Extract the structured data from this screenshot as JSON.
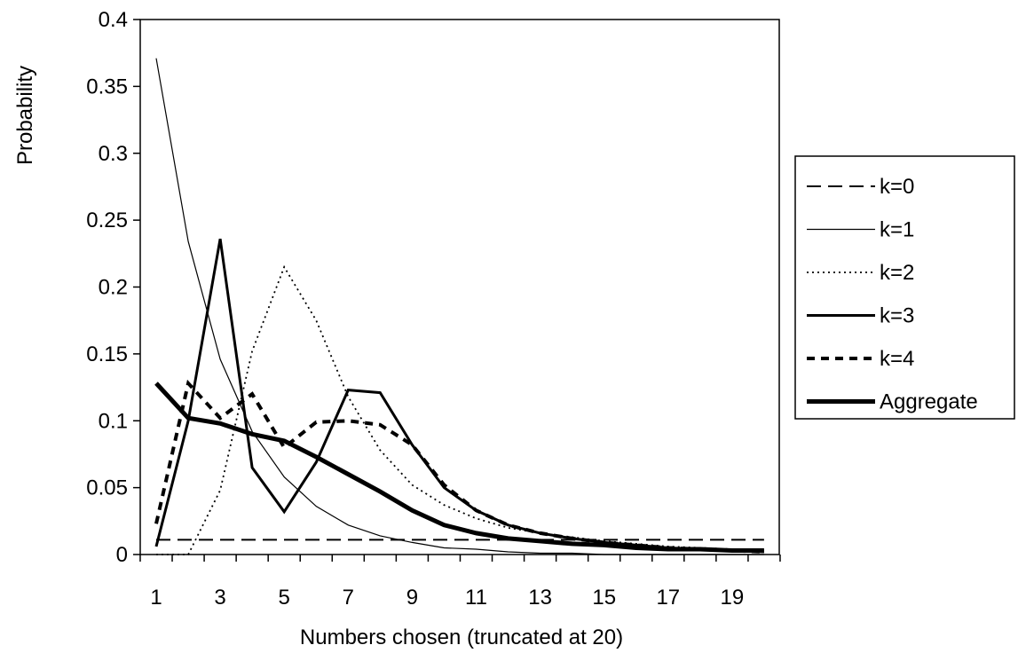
{
  "chart_data": {
    "type": "line",
    "title": "",
    "xlabel": "Numbers chosen (truncated at 20)",
    "ylabel": "Probability",
    "xlim": [
      1,
      20
    ],
    "ylim": [
      0,
      0.4
    ],
    "x_ticks": [
      1,
      3,
      5,
      7,
      9,
      11,
      13,
      15,
      17,
      19
    ],
    "y_ticks": [
      0,
      0.05,
      0.1,
      0.15,
      0.2,
      0.25,
      0.3,
      0.35,
      0.4
    ],
    "y_tick_labels": [
      "0",
      "0.05",
      "0.1",
      "0.15",
      "0.2",
      "0.25",
      "0.3",
      "0.35",
      "0.4"
    ],
    "x": [
      1,
      2,
      3,
      4,
      5,
      6,
      7,
      8,
      9,
      10,
      11,
      12,
      13,
      14,
      15,
      16,
      17,
      18,
      19,
      20
    ],
    "legend_position": "right",
    "grid": false,
    "series": [
      {
        "name": "k=0",
        "style": "dashed",
        "values": [
          0.011,
          0.011,
          0.011,
          0.011,
          0.011,
          0.011,
          0.011,
          0.011,
          0.011,
          0.011,
          0.011,
          0.011,
          0.011,
          0.011,
          0.011,
          0.011,
          0.011,
          0.011,
          0.011,
          0.011
        ]
      },
      {
        "name": "k=1",
        "style": "thin",
        "values": [
          0.371,
          0.234,
          0.146,
          0.092,
          0.058,
          0.036,
          0.022,
          0.014,
          0.009,
          0.005,
          0.004,
          0.002,
          0.001,
          0.001,
          0.0,
          0.0,
          0.0,
          0.0,
          0.0,
          0.0
        ]
      },
      {
        "name": "k=2",
        "style": "dotted",
        "values": [
          0.0,
          0.0,
          0.048,
          0.152,
          0.215,
          0.175,
          0.118,
          0.078,
          0.052,
          0.037,
          0.027,
          0.02,
          0.016,
          0.013,
          0.01,
          0.008,
          0.006,
          0.005,
          0.004,
          0.003
        ]
      },
      {
        "name": "k=3",
        "style": "medium",
        "values": [
          0.006,
          0.1,
          0.236,
          0.065,
          0.032,
          0.069,
          0.123,
          0.121,
          0.082,
          0.05,
          0.033,
          0.022,
          0.016,
          0.012,
          0.009,
          0.007,
          0.005,
          0.004,
          0.003,
          0.002
        ]
      },
      {
        "name": "k=4",
        "style": "bold-dashed",
        "values": [
          0.023,
          0.128,
          0.102,
          0.12,
          0.08,
          0.099,
          0.1,
          0.097,
          0.082,
          0.052,
          0.033,
          0.022,
          0.016,
          0.012,
          0.009,
          0.007,
          0.005,
          0.004,
          0.003,
          0.002
        ]
      },
      {
        "name": "Aggregate",
        "style": "thick",
        "values": [
          0.128,
          0.102,
          0.098,
          0.09,
          0.085,
          0.073,
          0.06,
          0.047,
          0.033,
          0.022,
          0.016,
          0.012,
          0.01,
          0.008,
          0.007,
          0.005,
          0.004,
          0.004,
          0.003,
          0.003
        ]
      }
    ]
  }
}
